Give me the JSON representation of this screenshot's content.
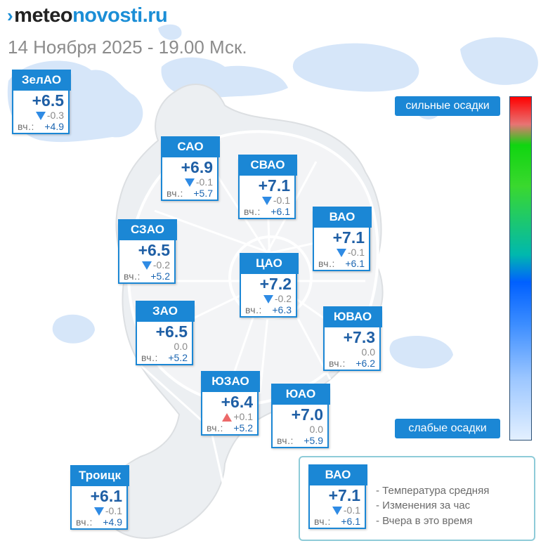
{
  "header": {
    "logo_mark": "›",
    "logo_meteo": "meteo",
    "logo_novosti": "novosti.ru",
    "date_text": "14 Ноября 2025 - 19.00 Мск."
  },
  "labels": {
    "yesterday_prefix": "вч.:"
  },
  "districts": [
    {
      "id": "zelao",
      "name": "ЗелАО",
      "temp": "+6.5",
      "trend": "down",
      "delta": "-0.3",
      "yesterday": "+4.9"
    },
    {
      "id": "sao",
      "name": "САО",
      "temp": "+6.9",
      "trend": "down",
      "delta": "-0.1",
      "yesterday": "+5.7"
    },
    {
      "id": "svao",
      "name": "СВАО",
      "temp": "+7.1",
      "trend": "down",
      "delta": "-0.1",
      "yesterday": "+6.1"
    },
    {
      "id": "vao",
      "name": "ВАО",
      "temp": "+7.1",
      "trend": "down",
      "delta": "-0.1",
      "yesterday": "+6.1"
    },
    {
      "id": "szao",
      "name": "СЗАО",
      "temp": "+6.5",
      "trend": "down",
      "delta": "-0.2",
      "yesterday": "+5.2"
    },
    {
      "id": "cao",
      "name": "ЦАО",
      "temp": "+7.2",
      "trend": "down",
      "delta": "-0.2",
      "yesterday": "+6.3"
    },
    {
      "id": "zao",
      "name": "ЗАО",
      "temp": "+6.5",
      "trend": "none",
      "delta": "0.0",
      "yesterday": "+5.2"
    },
    {
      "id": "yuvao",
      "name": "ЮВАО",
      "temp": "+7.3",
      "trend": "none",
      "delta": "0.0",
      "yesterday": "+6.2"
    },
    {
      "id": "yuzao",
      "name": "ЮЗАО",
      "temp": "+6.4",
      "trend": "up",
      "delta": "+0.1",
      "yesterday": "+5.2"
    },
    {
      "id": "yuao",
      "name": "ЮАО",
      "temp": "+7.0",
      "trend": "none",
      "delta": "0.0",
      "yesterday": "+5.9"
    },
    {
      "id": "troitsk",
      "name": "Троицк",
      "temp": "+6.1",
      "trend": "down",
      "delta": "-0.1",
      "yesterday": "+4.9"
    }
  ],
  "precip_scale": {
    "top_label": "сильные осадки",
    "bottom_label": "слабые осадки",
    "gradient_colors": [
      "#ff0000",
      "#10d510",
      "#0060ff",
      "#e3f0ff"
    ]
  },
  "legend": {
    "sample": {
      "name": "ВАО",
      "temp": "+7.1",
      "trend": "down",
      "delta": "-0.1",
      "yesterday": "+6.1"
    },
    "items": [
      "- Температура средняя",
      "- Изменения за час",
      "- Вчера в это время"
    ]
  },
  "colors": {
    "accent": "#1b87d5",
    "temp_text": "#1f5fa5",
    "trend_down": "#2f8be4",
    "trend_up": "#ec6969"
  }
}
